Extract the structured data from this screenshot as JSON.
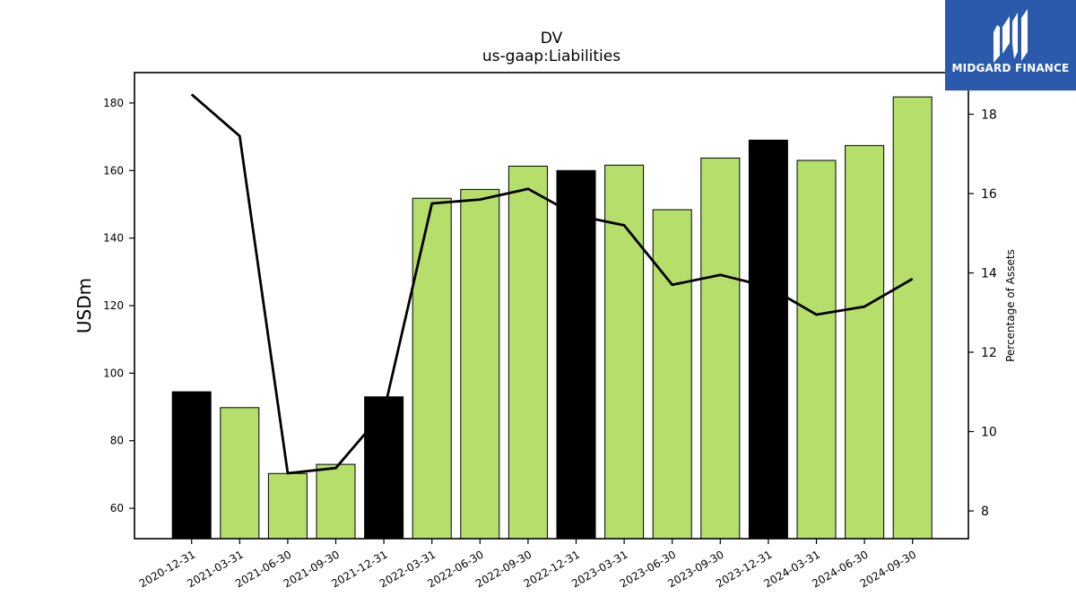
{
  "chart_data": {
    "type": "bar",
    "title": "DV",
    "subtitle": "us-gaap:Liabilities",
    "ylabel": "USDm",
    "y2label": "Percentage of Assets",
    "categories": [
      "2020-12-31",
      "2021-03-31",
      "2021-06-30",
      "2021-09-30",
      "2021-12-31",
      "2022-03-31",
      "2022-06-30",
      "2022-09-30",
      "2022-12-31",
      "2023-03-31",
      "2023-06-30",
      "2023-09-30",
      "2023-12-31",
      "2024-03-31",
      "2024-06-30",
      "2024-09-30"
    ],
    "values": [
      94.5,
      89.8,
      70.3,
      73.0,
      93.0,
      151.8,
      154.4,
      161.3,
      160.0,
      161.6,
      148.4,
      163.7,
      169.0,
      163.0,
      167.4,
      181.8
    ],
    "bar_colors": [
      "#000000",
      "#b5de6b",
      "#b5de6b",
      "#b5de6b",
      "#000000",
      "#b5de6b",
      "#b5de6b",
      "#b5de6b",
      "#000000",
      "#b5de6b",
      "#b5de6b",
      "#b5de6b",
      "#000000",
      "#b5de6b",
      "#b5de6b",
      "#b5de6b"
    ],
    "line_values": [
      18.5,
      17.45,
      8.95,
      9.08,
      10.5,
      15.75,
      15.85,
      16.12,
      15.45,
      15.2,
      13.7,
      13.95,
      13.65,
      12.95,
      13.15,
      13.85
    ],
    "line_color": "#000000",
    "ylim": [
      51,
      189
    ],
    "y_ticks": [
      60,
      80,
      100,
      120,
      140,
      160,
      180
    ],
    "y2lim": [
      7.3,
      19.05
    ],
    "y2_ticks": [
      8,
      10,
      12,
      14,
      16,
      18
    ],
    "grid": false
  },
  "logo": {
    "text": "MIDGARD FINANCE",
    "color": "#2b5aad"
  }
}
